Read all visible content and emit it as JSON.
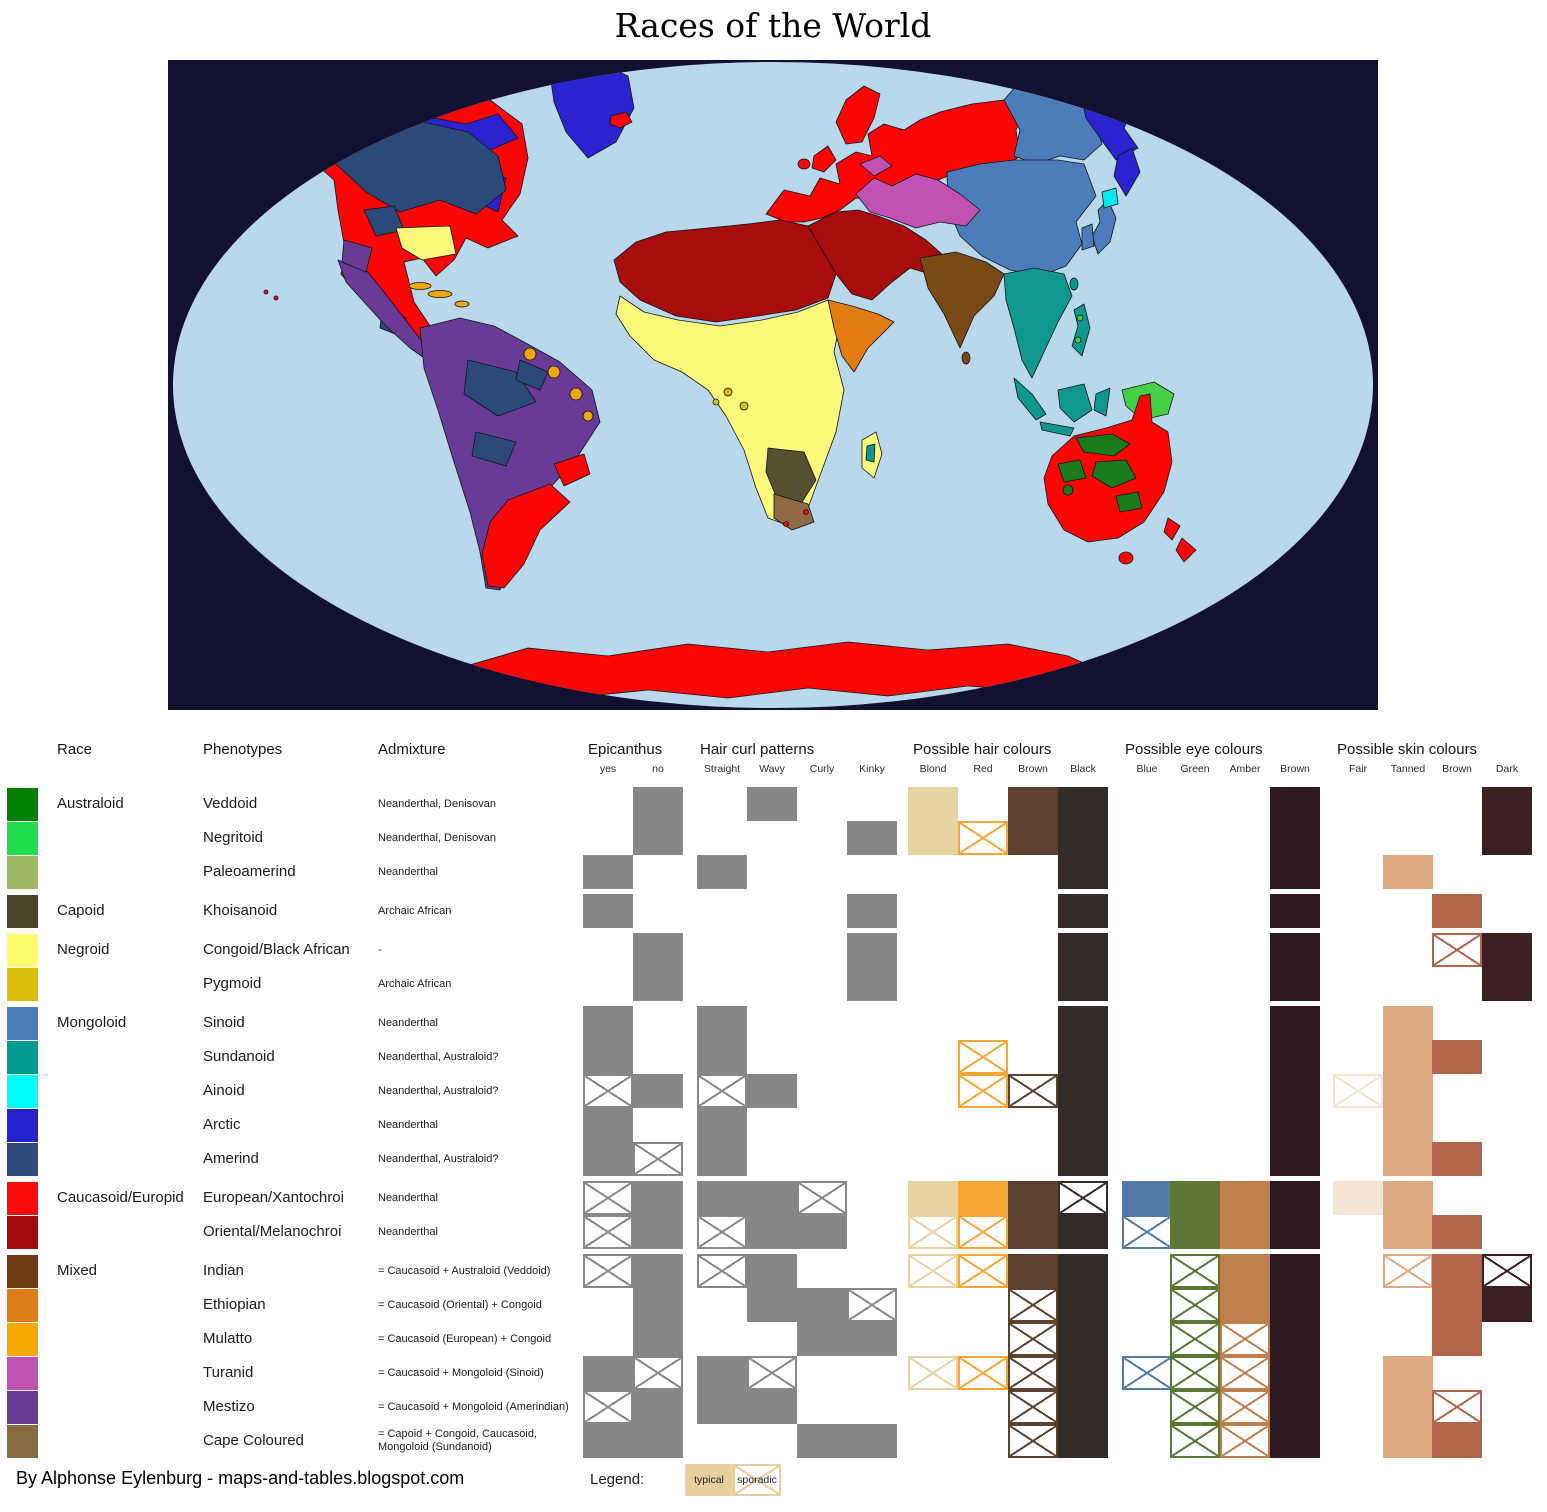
{
  "title": "Races of the World",
  "footer": "By Alphonse Eylenburg - maps-and-tables.blogspot.com",
  "legend": {
    "label": "Legend:",
    "typical": "typical",
    "sporadic": "sporadic",
    "swatch_color": "#e6d0a0"
  },
  "columns": {
    "race": "Race",
    "phenotypes": "Phenotypes",
    "admixture": "Admixture",
    "groups": [
      {
        "id": "epicanthus",
        "label": "Epicanthus",
        "keys": [
          "yes",
          "no"
        ]
      },
      {
        "id": "hair_curl",
        "label": "Hair curl patterns",
        "keys": [
          "Straight",
          "Wavy",
          "Curly",
          "Kinky"
        ]
      },
      {
        "id": "hair",
        "label": "Possible hair colours",
        "keys": [
          "Blond",
          "Red",
          "Brown",
          "Black"
        ]
      },
      {
        "id": "eye",
        "label": "Possible eye colours",
        "keys": [
          "Blue",
          "Green",
          "Amber",
          "Brown"
        ]
      },
      {
        "id": "skin",
        "label": "Possible skin colours",
        "keys": [
          "Fair",
          "Tanned",
          "Brown",
          "Dark"
        ]
      }
    ]
  },
  "cell_palette": {
    "epicanthus": {
      "yes": "#878787",
      "no": "#878787"
    },
    "hair_curl": {
      "Straight": "#878787",
      "Wavy": "#878787",
      "Curly": "#878787",
      "Kinky": "#878787"
    },
    "hair": {
      "Blond": "#e6d2a2",
      "Red": "#f6a637",
      "Brown": "#5d4131",
      "Black": "#342c2a"
    },
    "eye": {
      "Blue": "#5379a8",
      "Green": "#5d7636",
      "Amber": "#bd7f4c",
      "Brown": "#2d1a1f"
    },
    "skin": {
      "Fair": "#f3e4d3",
      "Tanned": "#dfa981",
      "Brown": "#b2654a",
      "Dark": "#3b2023"
    }
  },
  "rows": [
    {
      "race": "Australoid",
      "swatch": "#008000",
      "phenotype": "Veddoid",
      "admixture": "Neanderthal, Denisovan",
      "epicanthus": {
        "no": "T"
      },
      "hair_curl": {
        "Wavy": "T"
      },
      "hair": {
        "Blond": "T",
        "Brown": "T",
        "Black": "T"
      },
      "eye": {
        "Brown": "T"
      },
      "skin": {
        "Dark": "T"
      }
    },
    {
      "swatch": "#22dd4b",
      "phenotype": "Negritoid",
      "admixture": "Neanderthal, Denisovan",
      "epicanthus": {
        "no": "T"
      },
      "hair_curl": {
        "Kinky": "T"
      },
      "hair": {
        "Blond": "T",
        "Red": "S",
        "Brown": "T",
        "Black": "T"
      },
      "eye": {
        "Brown": "T"
      },
      "skin": {
        "Dark": "T"
      }
    },
    {
      "swatch": "#9cb961",
      "phenotype": "Paleoamerind",
      "admixture": "Neanderthal",
      "epicanthus": {
        "yes": "T"
      },
      "hair_curl": {
        "Straight": "T"
      },
      "hair": {
        "Black": "T"
      },
      "eye": {
        "Brown": "T"
      },
      "skin": {
        "Tanned": "T"
      }
    },
    {
      "race": "Capoid",
      "gap": true,
      "swatch": "#494327",
      "phenotype": "Khoisanoid",
      "admixture": "Archaic African",
      "epicanthus": {
        "yes": "T"
      },
      "hair_curl": {
        "Kinky": "T"
      },
      "hair": {
        "Black": "T"
      },
      "eye": {
        "Brown": "T"
      },
      "skin": {
        "Brown": "T"
      }
    },
    {
      "race": "Negroid",
      "gap": true,
      "swatch": "#fcfa6d",
      "phenotype": "Congoid/Black African",
      "admixture": "-",
      "epicanthus": {
        "no": "T"
      },
      "hair_curl": {
        "Kinky": "T"
      },
      "hair": {
        "Black": "T"
      },
      "eye": {
        "Brown": "T"
      },
      "skin": {
        "Brown": "S",
        "Dark": "T"
      }
    },
    {
      "swatch": "#d9bc07",
      "phenotype": "Pygmoid",
      "admixture": "Archaic African",
      "epicanthus": {
        "no": "T"
      },
      "hair_curl": {
        "Kinky": "T"
      },
      "hair": {
        "Black": "T"
      },
      "eye": {
        "Brown": "T"
      },
      "skin": {
        "Dark": "T"
      }
    },
    {
      "race": "Mongoloid",
      "gap": true,
      "swatch": "#4d7cba",
      "phenotype": "Sinoid",
      "admixture": "Neanderthal",
      "epicanthus": {
        "yes": "T"
      },
      "hair_curl": {
        "Straight": "T"
      },
      "hair": {
        "Black": "T"
      },
      "eye": {
        "Brown": "T"
      },
      "skin": {
        "Tanned": "T"
      }
    },
    {
      "swatch": "#009a90",
      "phenotype": "Sundanoid",
      "admixture": "Neanderthal, Australoid?",
      "epicanthus": {
        "yes": "T"
      },
      "hair_curl": {
        "Straight": "T"
      },
      "hair": {
        "Red": "S",
        "Black": "T"
      },
      "eye": {
        "Brown": "T"
      },
      "skin": {
        "Tanned": "T",
        "Brown": "T"
      }
    },
    {
      "swatch": "#00ffff",
      "phenotype": "Ainoid",
      "admixture": "Neanderthal, Australoid?",
      "epicanthus": {
        "yes": "S",
        "no": "T"
      },
      "hair_curl": {
        "Straight": "S",
        "Wavy": "T"
      },
      "hair": {
        "Red": "S",
        "Brown": "S",
        "Black": "T"
      },
      "eye": {
        "Brown": "T"
      },
      "skin": {
        "Fair": "S",
        "Tanned": "T"
      }
    },
    {
      "swatch": "#2323cd",
      "phenotype": "Arctic",
      "admixture": "Neanderthal",
      "epicanthus": {
        "yes": "T"
      },
      "hair_curl": {
        "Straight": "T"
      },
      "hair": {
        "Black": "T"
      },
      "eye": {
        "Brown": "T"
      },
      "skin": {
        "Tanned": "T"
      }
    },
    {
      "swatch": "#2c4b7c",
      "phenotype": "Amerind",
      "admixture": "Neanderthal, Australoid?",
      "epicanthus": {
        "yes": "T",
        "no": "S"
      },
      "hair_curl": {
        "Straight": "T"
      },
      "hair": {
        "Black": "T"
      },
      "eye": {
        "Brown": "T"
      },
      "skin": {
        "Tanned": "T",
        "Brown": "T"
      }
    },
    {
      "race": "Caucasoid/Europid",
      "gap": true,
      "swatch": "#fb0a0a",
      "phenotype": "European/Xantochroi",
      "admixture": "Neanderthal",
      "epicanthus": {
        "yes": "S",
        "no": "T"
      },
      "hair_curl": {
        "Straight": "T",
        "Wavy": "T",
        "Curly": "S"
      },
      "hair": {
        "Blond": "T",
        "Red": "T",
        "Brown": "T",
        "Black": "S"
      },
      "eye": {
        "Blue": "T",
        "Green": "T",
        "Amber": "T",
        "Brown": "T"
      },
      "skin": {
        "Fair": "T",
        "Tanned": "T"
      }
    },
    {
      "swatch": "#a30b0e",
      "phenotype": "Oriental/Melanochroi",
      "admixture": "Neanderthal",
      "epicanthus": {
        "yes": "S",
        "no": "T"
      },
      "hair_curl": {
        "Straight": "S",
        "Wavy": "T",
        "Curly": "T"
      },
      "hair": {
        "Blond": "S",
        "Red": "S",
        "Brown": "T",
        "Black": "T"
      },
      "eye": {
        "Blue": "S",
        "Green": "T",
        "Amber": "T",
        "Brown": "T"
      },
      "skin": {
        "Tanned": "T",
        "Brown": "T"
      }
    },
    {
      "race": "Mixed",
      "gap": true,
      "swatch": "#6b3a10",
      "phenotype": "Indian",
      "admixture": "= Caucasoid + Australoid (Veddoid)",
      "epicanthus": {
        "yes": "S",
        "no": "T"
      },
      "hair_curl": {
        "Straight": "S",
        "Wavy": "T"
      },
      "hair": {
        "Blond": "S",
        "Red": "S",
        "Brown": "T",
        "Black": "T"
      },
      "eye": {
        "Green": "S",
        "Amber": "T",
        "Brown": "T"
      },
      "skin": {
        "Tanned": "S",
        "Brown": "T",
        "Dark": "S"
      }
    },
    {
      "swatch": "#dd7c14",
      "phenotype": "Ethiopian",
      "admixture": "= Caucasoid (Oriental) + Congoid",
      "epicanthus": {
        "no": "T"
      },
      "hair_curl": {
        "Wavy": "T",
        "Curly": "T",
        "Kinky": "S"
      },
      "hair": {
        "Brown": "S",
        "Black": "T"
      },
      "eye": {
        "Green": "S",
        "Amber": "T",
        "Brown": "T"
      },
      "skin": {
        "Brown": "T",
        "Dark": "T"
      }
    },
    {
      "swatch": "#f5a902",
      "phenotype": "Mulatto",
      "admixture": "= Caucasoid (European) + Congoid",
      "epicanthus": {
        "no": "T"
      },
      "hair_curl": {
        "Curly": "T",
        "Kinky": "T"
      },
      "hair": {
        "Brown": "S",
        "Black": "T"
      },
      "eye": {
        "Green": "S",
        "Amber": "S",
        "Brown": "T"
      },
      "skin": {
        "Brown": "T"
      }
    },
    {
      "swatch": "#c050b2",
      "phenotype": "Turanid",
      "admixture": "= Caucasoid + Mongoloid (Sinoid)",
      "epicanthus": {
        "yes": "T",
        "no": "S"
      },
      "hair_curl": {
        "Straight": "T",
        "Wavy": "S"
      },
      "hair": {
        "Blond": "S",
        "Red": "S",
        "Brown": "S",
        "Black": "T"
      },
      "eye": {
        "Blue": "S",
        "Green": "S",
        "Amber": "S",
        "Brown": "T"
      },
      "skin": {
        "Tanned": "T"
      }
    },
    {
      "swatch": "#6a3b96",
      "phenotype": "Mestizo",
      "admixture": "= Caucasoid + Mongoloid (Amerindian)",
      "epicanthus": {
        "yes": "S",
        "no": "T"
      },
      "hair_curl": {
        "Straight": "T",
        "Wavy": "T"
      },
      "hair": {
        "Brown": "S",
        "Black": "T"
      },
      "eye": {
        "Green": "S",
        "Amber": "S",
        "Brown": "T"
      },
      "skin": {
        "Tanned": "T",
        "Brown": "S"
      }
    },
    {
      "swatch": "#8a6a42",
      "phenotype": "Cape Coloured",
      "admixture": "= Capoid + Congoid, Caucasoid, Mongoloid (Sundanoid)",
      "epicanthus": {
        "yes": "T",
        "no": "T"
      },
      "hair_curl": {
        "Curly": "T",
        "Kinky": "T"
      },
      "hair": {
        "Brown": "S",
        "Black": "T"
      },
      "eye": {
        "Green": "S",
        "Amber": "S",
        "Brown": "T"
      },
      "skin": {
        "Tanned": "T",
        "Brown": "T"
      }
    }
  ],
  "map": {
    "palette": {
      "background": "#131132",
      "ocean": "#b9d8ec",
      "european": "#fb0505",
      "oriental": "#a80d0d",
      "arctic": "#2a23cf",
      "amerind": "#2b4a7a",
      "sinoid": "#4d7cba",
      "sundanoid": "#0f998e",
      "ainoid": "#00eaea",
      "turanid": "#c251b4",
      "mestizo": "#6a3b96",
      "mulatto": "#f0a70e",
      "indian": "#7a4a16",
      "ethiopian": "#e07c12",
      "congoid": "#fbf97a",
      "pygmoid": "#d8bc06",
      "khoisanoid": "#55502f",
      "cape_coloured": "#8f6a44",
      "australoid": "#1b7a1b",
      "negritoid": "#45d145"
    }
  }
}
